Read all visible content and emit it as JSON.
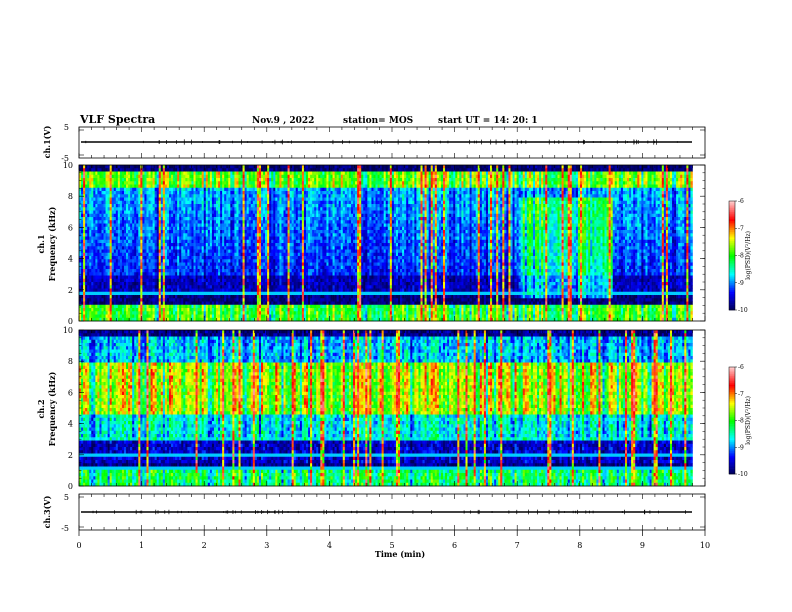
{
  "header": {
    "title": "VLF Spectra",
    "date": "Nov.9 , 2022",
    "station": "station= MOS",
    "start": "start UT = 14: 20: 1"
  },
  "colors": {
    "spectrum": [
      "#000050",
      "#0000ff",
      "#00ffff",
      "#00ff00",
      "#ffff00",
      "#ff0000",
      "#ffc8c8"
    ]
  },
  "chart_data": [
    {
      "id": "ch1-waveform",
      "type": "line",
      "ylabel": "ch.1(V)",
      "ylim": [
        -5,
        5
      ],
      "ytick_labels": [
        "5",
        "-5"
      ],
      "xlim": [
        0,
        10
      ],
      "baseline": 0
    },
    {
      "id": "ch1-spectrogram",
      "type": "heatmap",
      "ylabel_top": "ch.1",
      "ylabel": "Frequency (kHz)",
      "ylim": [
        0,
        10
      ],
      "ytick_labels": [
        "0",
        "2",
        "4",
        "6",
        "8",
        "10"
      ],
      "xlim": [
        0,
        9.8
      ],
      "colorbar": {
        "label": "log(PSD)(V²/Hz)",
        "range": [
          -10,
          -6
        ],
        "ticks": [
          "-6",
          "-7",
          "-8",
          "-9",
          "-10"
        ]
      },
      "bands_khz": [
        0.7,
        1.7,
        8.8
      ],
      "activity_note_min": [
        7,
        8.5
      ]
    },
    {
      "id": "ch2-spectrogram",
      "type": "heatmap",
      "ylabel_top": "ch.2",
      "ylabel": "Frequency (kHz)",
      "ylim": [
        0,
        10
      ],
      "ytick_labels": [
        "0",
        "2",
        "4",
        "6",
        "8",
        "10"
      ],
      "xlim": [
        0,
        9.8
      ],
      "colorbar": {
        "label": "log(PSD)(V²/Hz)",
        "range": [
          -10,
          -6
        ],
        "ticks": [
          "-6",
          "-7",
          "-8",
          "-9",
          "-10"
        ]
      },
      "bands_khz": [
        0.7,
        1.2,
        2.0,
        3.0
      ],
      "peak_band_khz": [
        5,
        8
      ]
    },
    {
      "id": "ch3-waveform",
      "type": "line",
      "ylabel": "ch.3(V)",
      "ylim": [
        -5,
        5
      ],
      "ytick_labels": [
        "5",
        "-5"
      ],
      "xlim": [
        0,
        10
      ],
      "baseline": 0
    }
  ],
  "xaxis": {
    "label": "Time (min)",
    "ticks": [
      "0",
      "1",
      "2",
      "3",
      "4",
      "5",
      "6",
      "7",
      "8",
      "9",
      "10"
    ],
    "range": [
      0,
      10
    ]
  }
}
